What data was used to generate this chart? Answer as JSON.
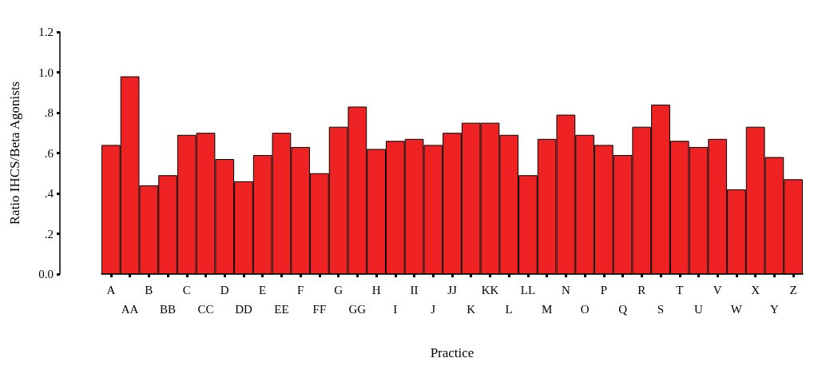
{
  "chart_data": {
    "type": "bar",
    "xlabel": "Practice",
    "ylabel": "Ratio IHCS/Beta Agonists",
    "categories": [
      "A",
      "AA",
      "B",
      "BB",
      "C",
      "CC",
      "D",
      "DD",
      "E",
      "EE",
      "F",
      "FF",
      "G",
      "GG",
      "H",
      "I",
      "II",
      "J",
      "JJ",
      "K",
      "KK",
      "L",
      "LL",
      "M",
      "N",
      "O",
      "P",
      "Q",
      "R",
      "S",
      "T",
      "U",
      "V",
      "W",
      "X",
      "Y",
      "Z"
    ],
    "values": [
      0.64,
      0.98,
      0.44,
      0.49,
      0.69,
      0.7,
      0.57,
      0.46,
      0.59,
      0.7,
      0.63,
      0.5,
      0.73,
      0.83,
      0.62,
      0.66,
      0.67,
      0.64,
      0.7,
      0.75,
      0.75,
      0.69,
      0.49,
      0.67,
      0.79,
      0.69,
      0.64,
      0.59,
      0.73,
      0.84,
      0.66,
      0.63,
      0.67,
      0.42,
      0.73,
      0.58,
      0.47
    ],
    "color": "#ee2222",
    "ylim": [
      0,
      1.2
    ],
    "yticks": [
      {
        "value": 0,
        "label": "0.0"
      },
      {
        "value": 0.2,
        "label": ".2"
      },
      {
        "value": 0.4,
        "label": ".4"
      },
      {
        "value": 0.6,
        "label": ".6"
      },
      {
        "value": 0.8,
        "label": ".8"
      },
      {
        "value": 1,
        "label": "1.0"
      },
      {
        "value": 1.2,
        "label": "1.2"
      }
    ],
    "grid": false
  }
}
